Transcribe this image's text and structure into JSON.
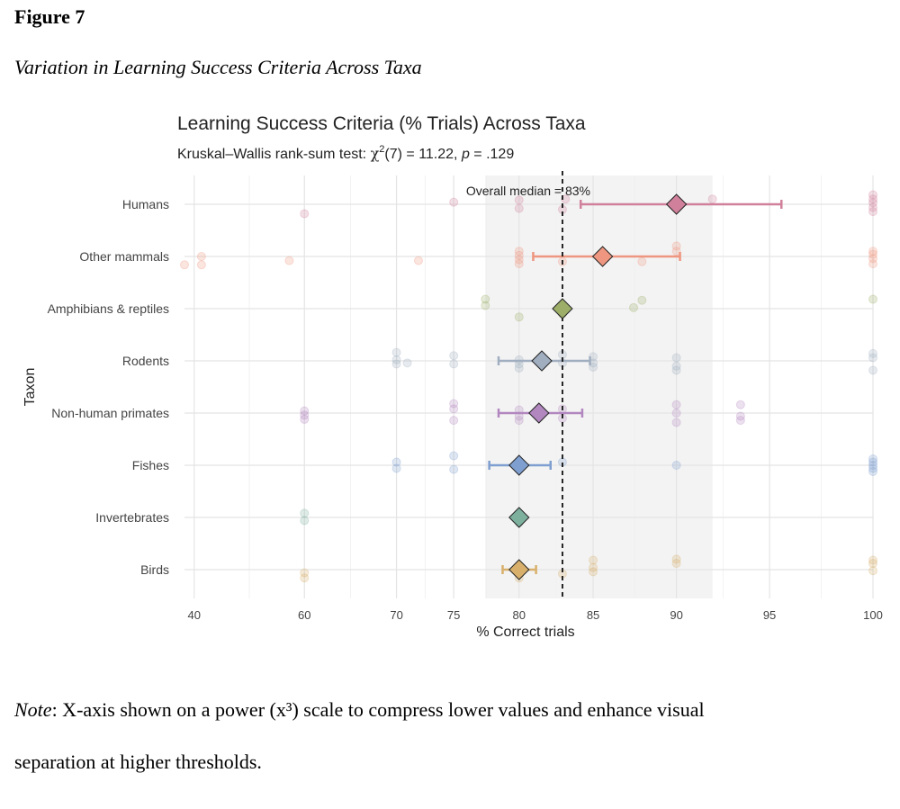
{
  "figure": {
    "label": "Figure 7",
    "caption": "Variation in Learning Success Criteria Across Taxa"
  },
  "note": {
    "lead": "Note",
    "line1": ": X-axis shown on a power (x³) scale to compress lower values and enhance visual",
    "line2": "separation at higher thresholds."
  },
  "chart_data": {
    "type": "scatter",
    "title": "Learning Success Criteria (% Trials) Across Taxa",
    "subtitle": {
      "prefix": "Kruskal–Wallis rank-sum test: ",
      "chi": "χ",
      "sup": "2",
      "df_stat": "(7) = 11.22, ",
      "p": "p",
      "pval": " = .129"
    },
    "xlabel": "% Correct trials",
    "ylabel": "Taxon",
    "x_scale": "power3",
    "xlim": [
      37,
      100
    ],
    "x_ticks": [
      40,
      60,
      70,
      75,
      80,
      85,
      90,
      95,
      100
    ],
    "grid": true,
    "median": {
      "value": 83,
      "label": "Overall median = 83%"
    },
    "shaded_band": [
      77.5,
      92
    ],
    "categories": [
      "Humans",
      "Other mammals",
      "Amphibians & reptiles",
      "Rodents",
      "Non-human primates",
      "Fishes",
      "Invertebrates",
      "Birds"
    ],
    "series": [
      {
        "name": "Humans",
        "color": "#d0809a",
        "mean": 90,
        "ci": [
          84.2,
          95.6
        ],
        "points": [
          [
            60,
            0.18
          ],
          [
            75,
            -0.04
          ],
          [
            80,
            0.08
          ],
          [
            80,
            -0.08
          ],
          [
            83,
            0.1
          ],
          [
            83.2,
            -0.1
          ],
          [
            90,
            0
          ],
          [
            92,
            -0.1
          ],
          [
            100,
            -0.18
          ],
          [
            100,
            -0.1
          ],
          [
            100,
            -0.03
          ],
          [
            100,
            0.06
          ],
          [
            100,
            0.14
          ]
        ]
      },
      {
        "name": "Other mammals",
        "color": "#ee9680",
        "mean": 85.6,
        "ci": [
          81,
          90.2
        ],
        "points": [
          [
            37,
            0.16
          ],
          [
            42,
            0
          ],
          [
            42,
            0.16
          ],
          [
            58,
            0.08
          ],
          [
            72,
            0.08
          ],
          [
            80,
            -0.1
          ],
          [
            80,
            -0.02
          ],
          [
            80,
            0.06
          ],
          [
            80,
            0.14
          ],
          [
            83,
            0.1
          ],
          [
            88,
            0.1
          ],
          [
            90,
            -0.2
          ],
          [
            90,
            -0.1
          ],
          [
            100,
            -0.1
          ],
          [
            100,
            -0.04
          ],
          [
            100,
            0.04
          ],
          [
            100,
            0.14
          ]
        ]
      },
      {
        "name": "Amphibians & reptiles",
        "color": "#9cae68",
        "mean": 83,
        "ci": [
          83,
          83
        ],
        "points": [
          [
            77.5,
            -0.18
          ],
          [
            77.5,
            -0.06
          ],
          [
            80,
            0.16
          ],
          [
            83,
            0.1
          ],
          [
            87.5,
            -0.02
          ],
          [
            88,
            -0.16
          ],
          [
            100,
            -0.18
          ]
        ]
      },
      {
        "name": "Rodents",
        "color": "#a0aec0",
        "mean": 81.6,
        "ci": [
          78.5,
          84.8
        ],
        "points": [
          [
            70,
            -0.16
          ],
          [
            70,
            -0.02
          ],
          [
            70,
            0.06
          ],
          [
            71,
            0.04
          ],
          [
            75,
            -0.1
          ],
          [
            75,
            0.06
          ],
          [
            80,
            -0.02
          ],
          [
            80,
            0.06
          ],
          [
            80,
            0.14
          ],
          [
            83,
            -0.12
          ],
          [
            83,
            0.04
          ],
          [
            85,
            -0.08
          ],
          [
            85,
            0.04
          ],
          [
            85,
            0.12
          ],
          [
            90,
            -0.06
          ],
          [
            90,
            0.1
          ],
          [
            90,
            0.18
          ],
          [
            100,
            -0.14
          ],
          [
            100,
            -0.06
          ],
          [
            100,
            0.18
          ]
        ]
      },
      {
        "name": "Non-human primates",
        "color": "#b287c0",
        "mean": 81.4,
        "ci": [
          78.5,
          84.3
        ],
        "points": [
          [
            60,
            -0.04
          ],
          [
            60,
            0.04
          ],
          [
            60,
            0.12
          ],
          [
            75,
            -0.18
          ],
          [
            75,
            -0.08
          ],
          [
            75,
            0.14
          ],
          [
            80,
            -0.06
          ],
          [
            80,
            0.06
          ],
          [
            80,
            0.14
          ],
          [
            83,
            -0.08
          ],
          [
            83,
            0.1
          ],
          [
            90,
            -0.16
          ],
          [
            90,
            0
          ],
          [
            90,
            0.18
          ],
          [
            93.5,
            -0.16
          ],
          [
            93.5,
            0.06
          ],
          [
            93.5,
            0.14
          ]
        ]
      },
      {
        "name": "Fishes",
        "color": "#7f9fd0",
        "mean": 80,
        "ci": [
          77.8,
          82.2
        ],
        "points": [
          [
            70,
            -0.06
          ],
          [
            70,
            0.06
          ],
          [
            75,
            -0.18
          ],
          [
            75,
            0.08
          ],
          [
            83,
            -0.06
          ],
          [
            90,
            0
          ],
          [
            100,
            -0.12
          ],
          [
            100,
            -0.06
          ],
          [
            100,
            0
          ],
          [
            100,
            0.06
          ],
          [
            100,
            0.12
          ]
        ]
      },
      {
        "name": "Invertebrates",
        "color": "#7eb09e",
        "mean": 80,
        "ci": [
          80,
          80
        ],
        "points": [
          [
            60,
            -0.08
          ],
          [
            60,
            0.06
          ],
          [
            80,
            0.1
          ]
        ]
      },
      {
        "name": "Birds",
        "color": "#d8b06c",
        "mean": 80,
        "ci": [
          78.8,
          81.2
        ],
        "points": [
          [
            60,
            0.06
          ],
          [
            60,
            0.16
          ],
          [
            80,
            0.16
          ],
          [
            83,
            0.08
          ],
          [
            85,
            -0.18
          ],
          [
            85,
            -0.04
          ],
          [
            85,
            0.04
          ],
          [
            90,
            -0.2
          ],
          [
            90,
            -0.12
          ],
          [
            100,
            -0.18
          ],
          [
            100,
            -0.12
          ],
          [
            100,
            0.02
          ]
        ]
      }
    ]
  }
}
